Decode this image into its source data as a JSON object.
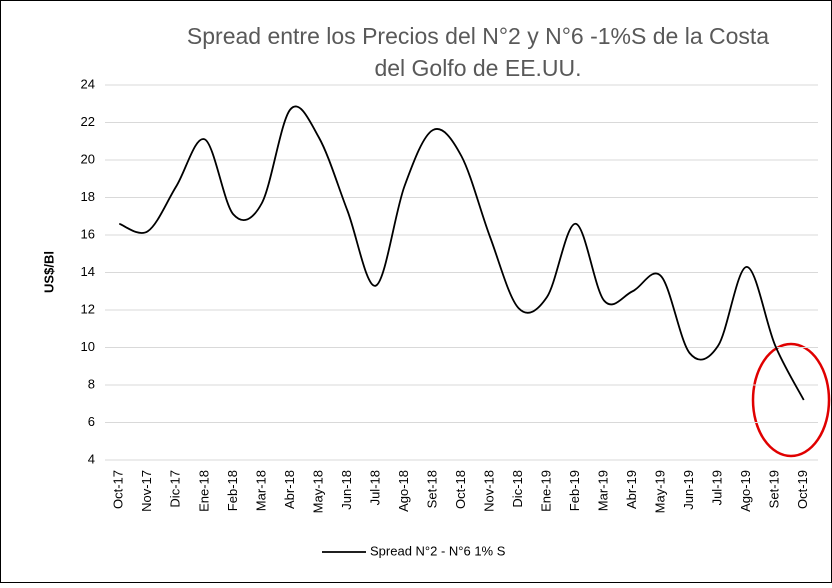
{
  "chart_data": {
    "type": "line",
    "title": [
      "Spread entre los Precios del N°2 y N°6 -1%S de la Costa",
      "del Golfo de EE.UU."
    ],
    "y_label": "US$/Bl",
    "categories": [
      "Oct-17",
      "Nov-17",
      "Dic-17",
      "Ene-18",
      "Feb-18",
      "Mar-18",
      "Abr-18",
      "May-18",
      "Jun-18",
      "Jul-18",
      "Ago-18",
      "Set-18",
      "Oct-18",
      "Nov-18",
      "Dic-18",
      "Ene-19",
      "Feb-19",
      "Mar-19",
      "Abr-19",
      "May-19",
      "Jun-19",
      "Jul-19",
      "Ago-19",
      "Set-19",
      "Oct-19"
    ],
    "series": [
      {
        "name": "Spread N°2 - N°6 1% S",
        "color": "#000000",
        "values": [
          16.6,
          16.2,
          18.6,
          21.1,
          17.1,
          17.7,
          22.7,
          21.2,
          17.3,
          13.3,
          18.6,
          21.6,
          20.2,
          15.9,
          12.1,
          12.7,
          16.6,
          12.5,
          13.0,
          13.8,
          9.7,
          10.1,
          14.3,
          10.1,
          7.2
        ]
      }
    ],
    "ylim": [
      4,
      24
    ],
    "yticks": [
      4,
      6,
      8,
      10,
      12,
      14,
      16,
      18,
      20,
      22,
      24
    ],
    "grid": true,
    "legend": "bottom"
  }
}
